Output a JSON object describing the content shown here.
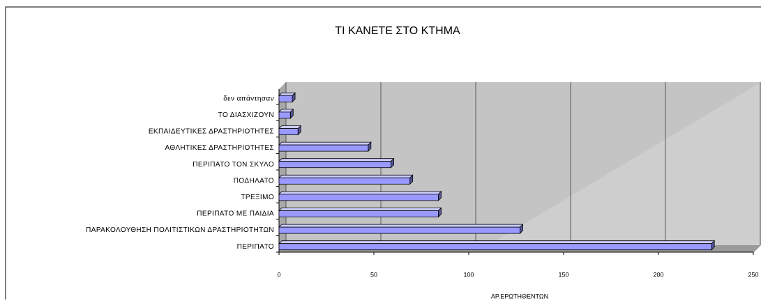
{
  "chart_data": {
    "type": "bar",
    "orientation": "horizontal",
    "title": "ΤΙ ΚΑΝΕΤΕ ΣΤΟ ΚΤΗΜΑ",
    "xlabel": "ΑΡ.ΕΡΩΤΗΘΕΝΤΩΝ",
    "categories": [
      "ΠΕΡΙΠΑΤΟ",
      "ΠΑΡΑΚΟΛΟΥΘΗΣΗ ΠΟΛΙΤΙΣΤΙΚΩΝ ΔΡΑΣΤΗΡΙΟΤΗΤΩΝ",
      "ΠΕΡΙΠΑΤΟ ΜΕ ΠΑΙΔΙΑ",
      "ΤΡΕΞΙΜΟ",
      "ΠΟΔΗΛΑΤΟ",
      "ΠΕΡΙΠΑΤΟ ΤΟΝ ΣΚΥΛΟ",
      "ΑΘΛΗΤΙΚΕΣ ΔΡΑΣΤΗΡΙΟΤΗΤΕΣ",
      "ΕΚΠΑΙΔΕΥΤΙΚΕΣ ΔΡΑΣΤΗΡΙΟΤΗΤΕΣ",
      "ΤΟ ΔΙΑΣΧΙΖΟΥΝ",
      "δεν απάντησαν"
    ],
    "values": [
      228,
      127,
      84,
      84,
      69,
      59,
      47,
      10,
      6,
      7
    ],
    "color": "#9999ff",
    "xlim": [
      0,
      250
    ],
    "xticks": [
      0,
      50,
      100,
      150,
      200,
      250
    ],
    "grid": true
  }
}
